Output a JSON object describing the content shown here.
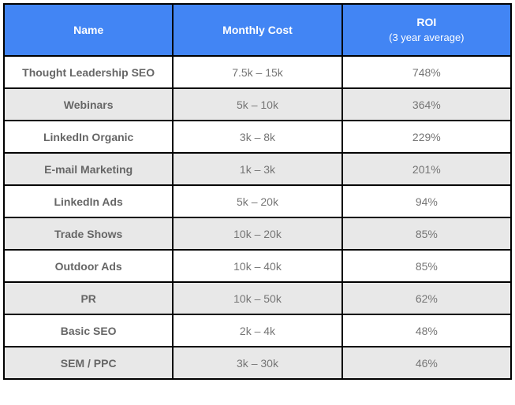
{
  "chart_data": {
    "type": "table",
    "columns": [
      {
        "label": "Name",
        "sublabel": ""
      },
      {
        "label": "Monthly Cost",
        "sublabel": ""
      },
      {
        "label": "ROI",
        "sublabel": "(3 year average)"
      }
    ],
    "rows": [
      [
        "Thought Leadership SEO",
        "7.5k – 15k",
        "748%"
      ],
      [
        "Webinars",
        "5k – 10k",
        "364%"
      ],
      [
        "LinkedIn Organic",
        "3k – 8k",
        "229%"
      ],
      [
        "E-mail Marketing",
        "1k – 3k",
        "201%"
      ],
      [
        "LinkedIn Ads",
        "5k – 20k",
        "94%"
      ],
      [
        "Trade Shows",
        "10k – 20k",
        "85%"
      ],
      [
        "Outdoor Ads",
        "10k – 40k",
        "85%"
      ],
      [
        "PR",
        "10k – 50k",
        "62%"
      ],
      [
        "Basic SEO",
        "2k – 4k",
        "48%"
      ],
      [
        "SEM / PPC",
        "3k – 30k",
        "46%"
      ]
    ],
    "colors": {
      "header_bg": "#4285f4",
      "header_text": "#ffffff",
      "row_bg": "#ffffff",
      "row_alt_bg": "#e8e8e8",
      "border": "#000000",
      "name_text": "#666666",
      "value_text": "#757575"
    }
  }
}
